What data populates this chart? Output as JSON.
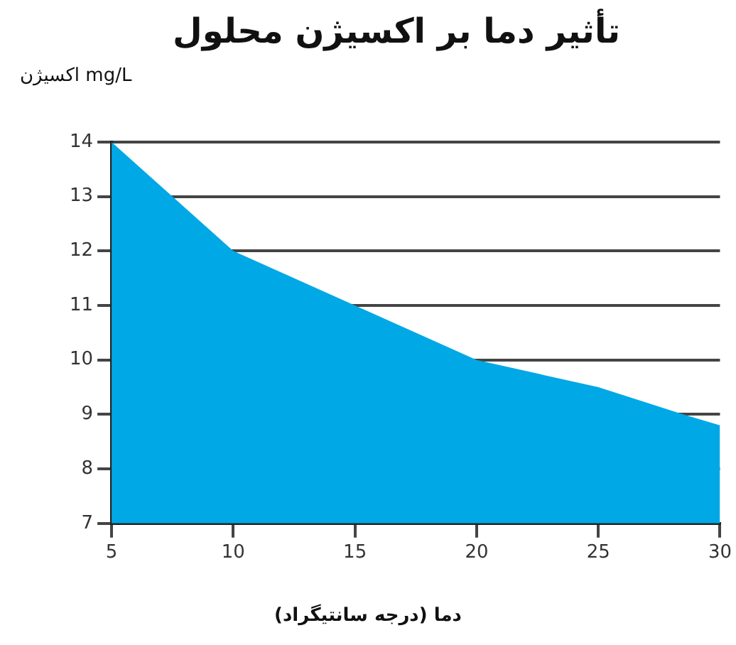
{
  "chart_data": {
    "type": "area",
    "title": "تأثیر دما بر اکسیژن محلول",
    "xlabel": "دما (درجه سانتیگراد)",
    "ylabel": "اکسیژن mg/L",
    "x": [
      5,
      10,
      15,
      20,
      25,
      28.5,
      30
    ],
    "series": [
      {
        "color": "#00a8e6",
        "values": [
          14,
          12,
          11,
          10,
          9.5,
          9,
          8.8
        ]
      }
    ],
    "xlim": [
      5,
      30
    ],
    "xticks": [
      5,
      10,
      15,
      20,
      25,
      30
    ],
    "ylim": [
      7,
      14
    ],
    "yticks": [
      7,
      8,
      9,
      10,
      11,
      12,
      13,
      14
    ],
    "grid": "y",
    "legend": false
  }
}
